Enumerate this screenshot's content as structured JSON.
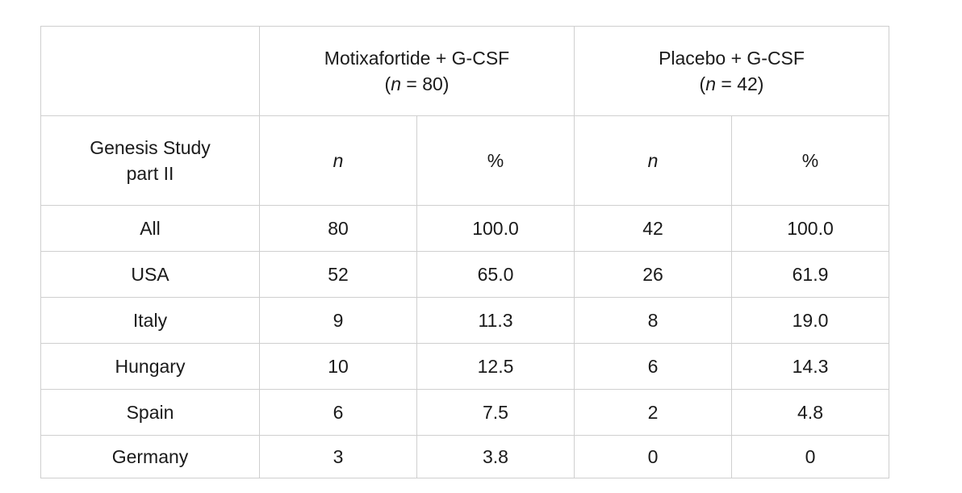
{
  "table": {
    "groups": [
      {
        "line1": "Motixafortide + G-CSF",
        "n_var": "n",
        "n_rest": " = 80)"
      },
      {
        "line1": "Placebo + G-CSF",
        "n_var": "n",
        "n_rest": " = 42)"
      }
    ],
    "corner_label_line1": "Genesis Study",
    "corner_label_line2": "part II",
    "subheaders": [
      "n",
      "%",
      "n",
      "%"
    ],
    "rows": [
      {
        "label": "All",
        "cells": [
          "80",
          "100.0",
          "42",
          "100.0"
        ]
      },
      {
        "label": "USA",
        "cells": [
          "52",
          "65.0",
          "26",
          "61.9"
        ]
      },
      {
        "label": "Italy",
        "cells": [
          "9",
          "11.3",
          "8",
          "19.0"
        ]
      },
      {
        "label": "Hungary",
        "cells": [
          "10",
          "12.5",
          "6",
          "14.3"
        ]
      },
      {
        "label": "Spain",
        "cells": [
          "6",
          "7.5",
          "2",
          "4.8"
        ]
      },
      {
        "label": "Germany",
        "cells": [
          "3",
          "3.8",
          "0",
          "0"
        ]
      }
    ]
  }
}
